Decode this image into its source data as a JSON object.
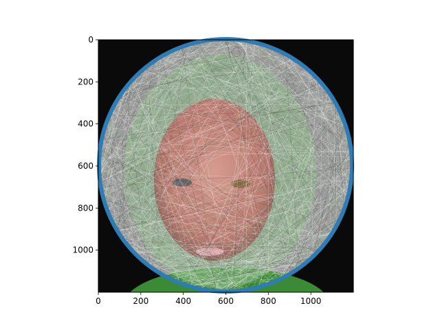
{
  "chart_data": {
    "type": "image",
    "title": "",
    "xlabel": "",
    "ylabel": "",
    "xlim": [
      0,
      1200
    ],
    "ylim": [
      1200,
      0
    ],
    "x_ticks": [
      0,
      200,
      400,
      600,
      800,
      1000
    ],
    "y_ticks": [
      0,
      200,
      400,
      600,
      800,
      1000
    ],
    "circle": {
      "center": [
        600,
        600
      ],
      "radius": 600,
      "color": "#2f7bb4"
    },
    "image_description_tags": [
      "face-photo",
      "string-art-overlay"
    ],
    "colors": {
      "background": "#0a0a0a",
      "thread_white": "#ffffff",
      "thread_green": "#7fc27a",
      "skin": "#c98a80",
      "shirt": "#3b8a35"
    }
  }
}
